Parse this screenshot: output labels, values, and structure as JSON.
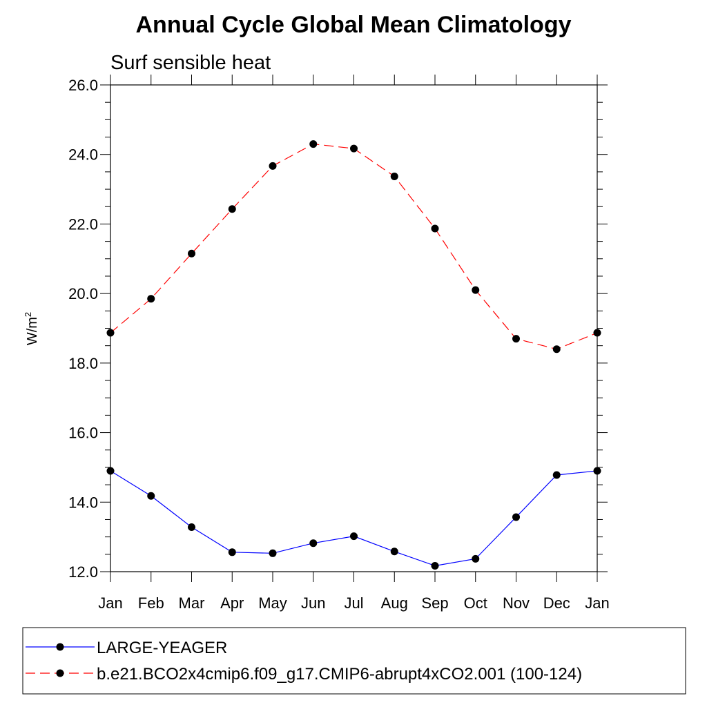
{
  "chart_data": {
    "type": "line",
    "title": "Annual Cycle Global Mean Climatology",
    "subtitle": "Surf sensible heat",
    "ylabel": "W/m",
    "ylabel_sup": "2",
    "ylim": [
      12.0,
      26.0
    ],
    "yticks": [
      "12.0",
      "14.0",
      "16.0",
      "18.0",
      "20.0",
      "22.0",
      "24.0",
      "26.0"
    ],
    "categories": [
      "Jan",
      "Feb",
      "Mar",
      "Apr",
      "May",
      "Jun",
      "Jul",
      "Aug",
      "Sep",
      "Oct",
      "Nov",
      "Dec",
      "Jan"
    ],
    "grid": false,
    "legend_position": "bottom",
    "series": [
      {
        "name": "LARGE-YEAGER",
        "color": "#0000ff",
        "dash": "solid",
        "values": [
          14.9,
          14.18,
          13.28,
          12.56,
          12.53,
          12.82,
          13.02,
          12.58,
          12.17,
          12.37,
          13.57,
          14.78,
          14.9
        ]
      },
      {
        "name": "b.e21.BCO2x4cmip6.f09_g17.CMIP6-abrupt4xCO2.001 (100-124)",
        "color": "#ff0000",
        "dash": "dashed",
        "values": [
          18.87,
          19.85,
          21.15,
          22.43,
          23.67,
          24.3,
          24.17,
          23.37,
          21.87,
          20.1,
          18.7,
          18.4,
          18.87
        ]
      }
    ]
  }
}
